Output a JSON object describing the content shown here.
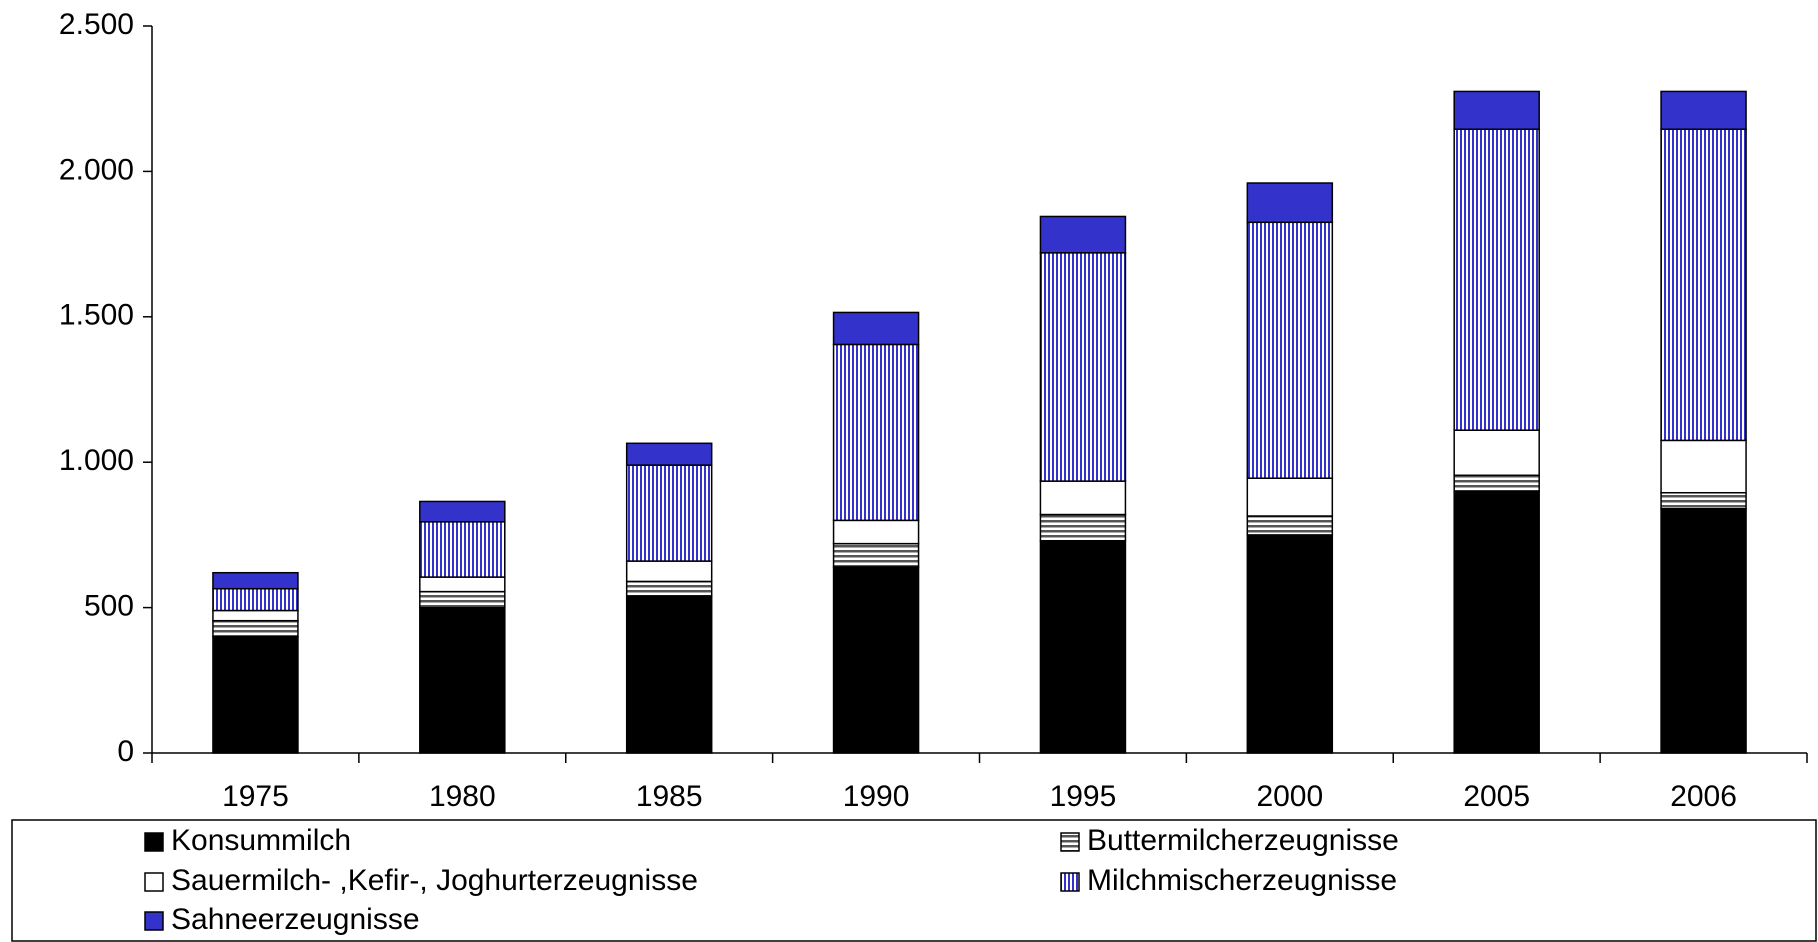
{
  "chart_data": {
    "type": "stacked_bar",
    "categories": [
      "1975",
      "1980",
      "1985",
      "1990",
      "1995",
      "2000",
      "2005",
      "2006"
    ],
    "series": [
      {
        "name": "Konsummilch",
        "color": "#000000",
        "pattern": "solid",
        "values": [
          400,
          500,
          540,
          640,
          730,
          750,
          900,
          840
        ]
      },
      {
        "name": "Buttermilcherzeugnisse",
        "color": "#8c8c8c",
        "pattern": "horizontal",
        "values": [
          55,
          55,
          50,
          80,
          90,
          65,
          55,
          55
        ]
      },
      {
        "name": "Sauermilch- ,Kefir-, Joghurterzeugnisse",
        "color": "#ffffff",
        "pattern": "solid",
        "values": [
          35,
          50,
          70,
          80,
          115,
          130,
          155,
          180
        ]
      },
      {
        "name": "Milchmischerzeugnisse",
        "color": "#3333cc",
        "pattern": "vertical",
        "values": [
          75,
          190,
          330,
          605,
          785,
          880,
          1035,
          1070
        ]
      },
      {
        "name": "Sahneerzeugnisse",
        "color": "#3333cc",
        "pattern": "solid",
        "values": [
          55,
          70,
          75,
          110,
          125,
          135,
          130,
          130
        ]
      }
    ],
    "ylim": [
      0,
      2500
    ],
    "yticks": [
      0,
      500,
      {
        "value": 1000,
        "label": "1.000"
      },
      {
        "value": 1500,
        "label": "1.500"
      },
      {
        "value": 2000,
        "label": "2.000"
      },
      {
        "value": 2500,
        "label": "2.500"
      }
    ],
    "grid": false,
    "legend": "bottom"
  }
}
